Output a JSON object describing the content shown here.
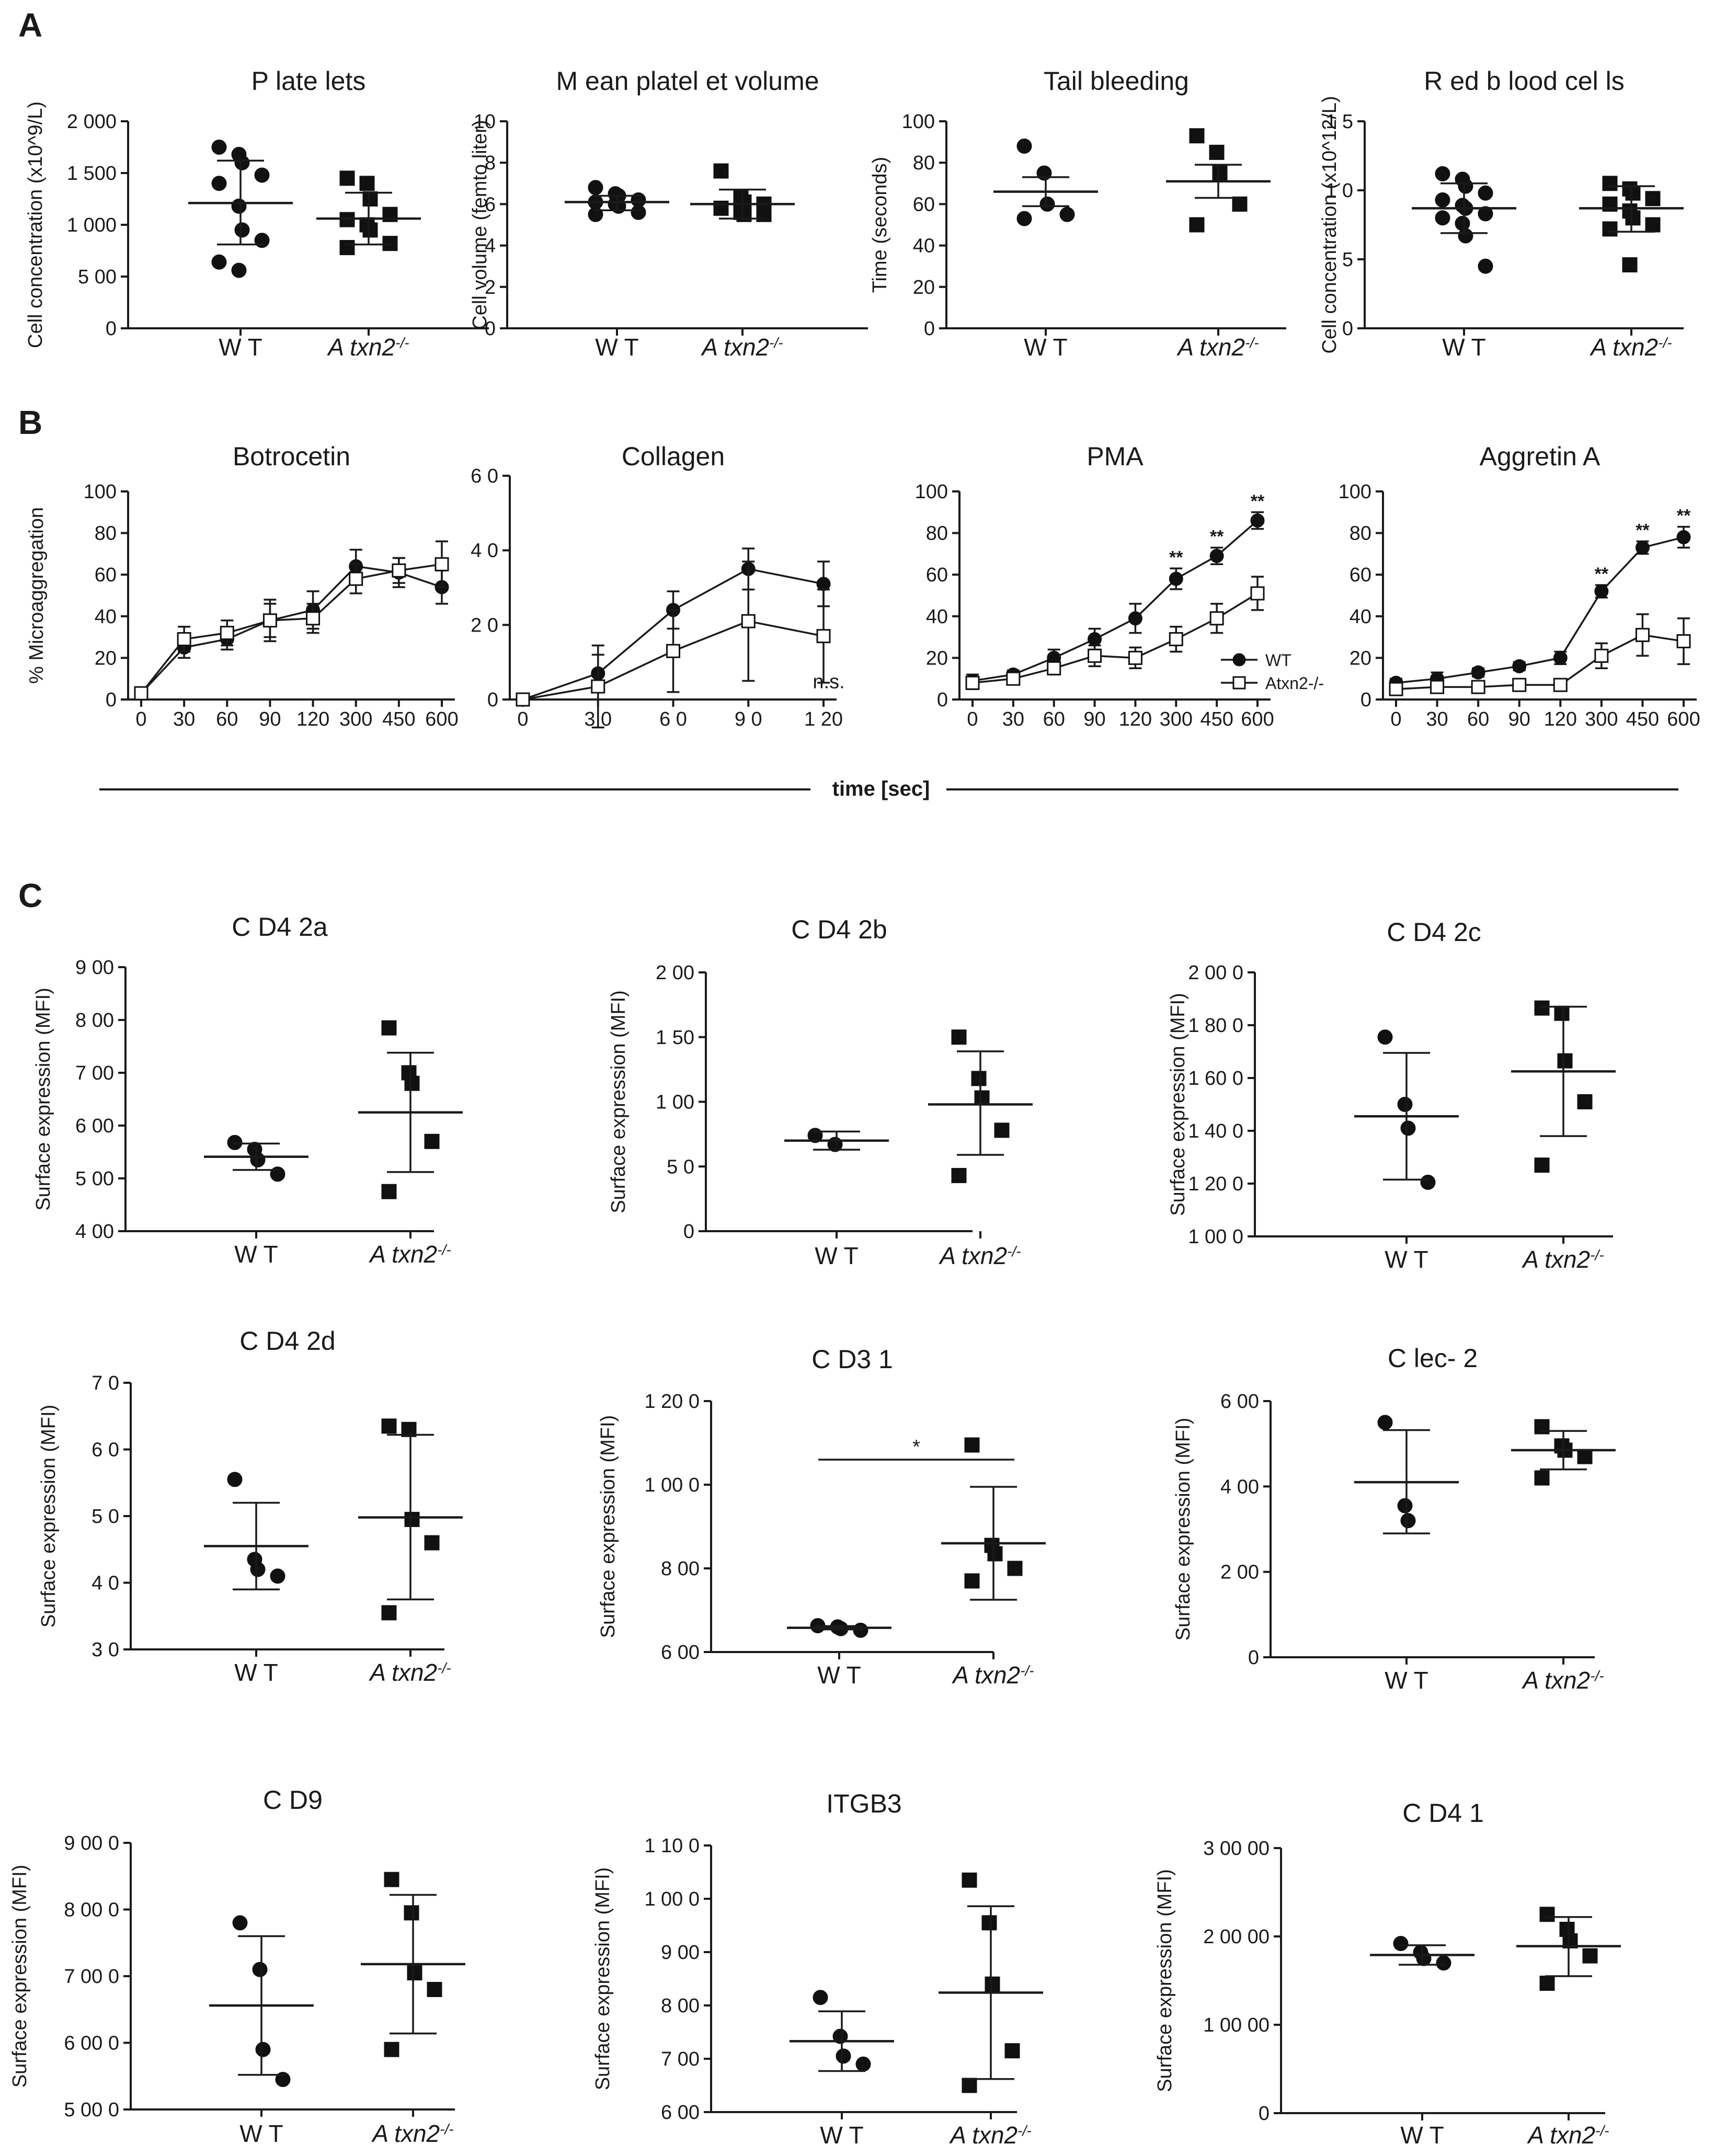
{
  "panel_labels": [
    "A",
    "B",
    "C"
  ],
  "sectionB": {
    "xlabel": "time [sec]"
  },
  "chart_data": [
    {
      "id": "platelets",
      "panel": "A",
      "type": "scatter",
      "title": "P late lets",
      "ylabel": "Cell concentration (x10^9/L)",
      "ylim": [
        0,
        2000
      ],
      "yticks": [
        0,
        500,
        1000,
        1500,
        2000
      ],
      "yticklabels": [
        "0",
        "5 00",
        "1 000",
        "1 500",
        "2 000"
      ],
      "categories": [
        "W T",
        "A txn2-/-"
      ],
      "series": [
        {
          "marker": "circle",
          "points": [
            1750,
            1680,
            1600,
            1480,
            1400,
            1180,
            950,
            850,
            640,
            560
          ],
          "mean": 1210,
          "error": [
            810,
            1620
          ]
        },
        {
          "marker": "square",
          "points": [
            1450,
            1400,
            1250,
            1100,
            1050,
            1000,
            950,
            820,
            780
          ],
          "mean": 1060,
          "error": [
            810,
            1310
          ]
        }
      ]
    },
    {
      "id": "mpv",
      "panel": "A",
      "type": "scatter",
      "title": "M ean platel et volume",
      "ylabel": "Cell volume (femto liter)",
      "ylim": [
        0,
        10
      ],
      "yticks": [
        0,
        2,
        4,
        6,
        8,
        10
      ],
      "yticklabels": [
        "0",
        "2",
        "4",
        "6",
        "8",
        "10"
      ],
      "categories": [
        "W T",
        "A txn2-/-"
      ],
      "series": [
        {
          "marker": "circle",
          "points": [
            6.8,
            6.5,
            6.4,
            6.2,
            6.1,
            6.0,
            5.9,
            5.6,
            5.5
          ],
          "mean": 6.1,
          "error": [
            5.7,
            6.4
          ]
        },
        {
          "marker": "square",
          "points": [
            7.6,
            6.3,
            6.1,
            6.0,
            5.8,
            5.6,
            5.5,
            5.5
          ],
          "mean": 6.0,
          "error": [
            5.3,
            6.7
          ]
        }
      ]
    },
    {
      "id": "tail",
      "panel": "A",
      "type": "scatter",
      "title": "Tail bleeding",
      "ylabel": "Time (seconds)",
      "ylim": [
        0,
        100
      ],
      "yticks": [
        0,
        20,
        40,
        60,
        80,
        100
      ],
      "yticklabels": [
        "0",
        "20",
        "40",
        "60",
        "80",
        "100"
      ],
      "categories": [
        "W T",
        "A txn2-/-"
      ],
      "series": [
        {
          "marker": "circle",
          "points": [
            88,
            75,
            60,
            55,
            53
          ],
          "mean": 66,
          "error": [
            59,
            73
          ]
        },
        {
          "marker": "square",
          "points": [
            93,
            85,
            75,
            60,
            50
          ],
          "mean": 71,
          "error": [
            63,
            79
          ]
        }
      ]
    },
    {
      "id": "rbc",
      "panel": "A",
      "type": "scatter",
      "title": "R ed b lood cel ls",
      "ylabel": "Cell concentration (x10^12/L)",
      "ylim": [
        0,
        15
      ],
      "yticks": [
        0,
        5,
        10,
        15
      ],
      "yticklabels": [
        "0",
        "5",
        "1 0",
        "1 5"
      ],
      "categories": [
        "W T",
        "A txn2-/-"
      ],
      "series": [
        {
          "marker": "circle",
          "points": [
            11.2,
            10.8,
            10.3,
            9.8,
            9.3,
            8.9,
            8.7,
            8.3,
            8.0,
            7.6,
            6.7,
            4.5
          ],
          "mean": 8.7,
          "error": [
            6.9,
            10.5
          ]
        },
        {
          "marker": "square",
          "points": [
            10.5,
            10.1,
            9.8,
            9.4,
            9.0,
            8.5,
            8.0,
            7.5,
            7.2,
            4.6
          ],
          "mean": 8.7,
          "error": [
            7.0,
            10.3
          ]
        }
      ]
    },
    {
      "id": "botrocetin",
      "panel": "B",
      "type": "line",
      "title": "Botrocetin",
      "ylabel": "% Microaggregation",
      "ylim": [
        0,
        100
      ],
      "yticks": [
        0,
        20,
        40,
        60,
        80,
        100
      ],
      "x": [
        "0",
        "30",
        "60",
        "90",
        "120",
        "300",
        "450",
        "600"
      ],
      "series": [
        {
          "marker": "circle",
          "values": [
            3,
            25,
            29,
            38,
            43,
            64,
            61,
            54
          ],
          "err": [
            1.5,
            5,
            5,
            8,
            9,
            8,
            7,
            8
          ]
        },
        {
          "marker": "square",
          "values": [
            3,
            29,
            32,
            38,
            39,
            58,
            62,
            65
          ],
          "err": [
            1.5,
            6,
            6,
            10,
            7,
            7,
            6,
            11
          ]
        }
      ]
    },
    {
      "id": "collagen",
      "panel": "B",
      "type": "line",
      "title": "Collagen",
      "ylim": [
        0,
        60
      ],
      "yticks": [
        0,
        20,
        40,
        60
      ],
      "yticklabels": [
        "0",
        "2 0",
        "4 0",
        "6 0"
      ],
      "x": [
        "0",
        "3 0",
        "6 0",
        "9 0",
        "1 20"
      ],
      "annotation": "n.s.",
      "series": [
        {
          "marker": "circle",
          "values": [
            0,
            7,
            24,
            35,
            31
          ],
          "err": [
            0.5,
            5,
            5,
            5.5,
            6
          ]
        },
        {
          "marker": "square",
          "values": [
            0,
            3.5,
            13,
            21,
            17
          ],
          "err": [
            0.5,
            11,
            11,
            16,
            12.5
          ]
        }
      ]
    },
    {
      "id": "pma",
      "panel": "B",
      "type": "line",
      "title": "PMA",
      "ylim": [
        0,
        100
      ],
      "yticks": [
        0,
        20,
        40,
        60,
        80,
        100
      ],
      "x": [
        "0",
        "30",
        "60",
        "90",
        "120",
        "300",
        "450",
        "600"
      ],
      "sig": [
        "",
        "",
        "",
        "",
        "",
        "**",
        "**",
        "**"
      ],
      "legend": [
        "WT",
        "Atxn2-/-"
      ],
      "series": [
        {
          "name": "WT",
          "marker": "circle",
          "values": [
            9,
            12,
            20,
            29,
            39,
            58,
            69,
            86
          ],
          "err": [
            3,
            2,
            4,
            5,
            7,
            5,
            4,
            4
          ]
        },
        {
          "name": "Atxn2-/-",
          "marker": "square",
          "values": [
            8,
            10,
            15,
            21,
            20,
            29,
            39,
            51
          ],
          "err": [
            3,
            2,
            3,
            5,
            5,
            6,
            7,
            8
          ]
        }
      ]
    },
    {
      "id": "aggretin",
      "panel": "B",
      "type": "line",
      "title": "Aggretin A",
      "ylim": [
        0,
        100
      ],
      "yticks": [
        0,
        20,
        40,
        60,
        80,
        100
      ],
      "x": [
        "0",
        "30",
        "60",
        "90",
        "120",
        "300",
        "450",
        "600"
      ],
      "sig": [
        "",
        "",
        "",
        "",
        "",
        "**",
        "**",
        "**"
      ],
      "series": [
        {
          "marker": "circle",
          "values": [
            8,
            10,
            13,
            16,
            20,
            52,
            73,
            78
          ],
          "err": [
            2,
            3,
            2,
            2,
            3,
            3,
            3,
            5
          ]
        },
        {
          "marker": "square",
          "values": [
            5,
            6,
            6,
            7,
            7,
            21,
            31,
            28
          ],
          "err": [
            2,
            2,
            1,
            1,
            1,
            6,
            10,
            11
          ]
        }
      ]
    },
    {
      "id": "cd42a",
      "panel": "C",
      "type": "scatter",
      "title": "C D4 2a",
      "ylabel": "Surface expression (MFI)",
      "ylim": [
        400,
        900
      ],
      "yticks": [
        400,
        500,
        600,
        700,
        800,
        900
      ],
      "yticklabels": [
        "4 00",
        "5 00",
        "6 00",
        "7 00",
        "8 00",
        "9 00"
      ],
      "categories": [
        "W T",
        "A txn2-/-"
      ],
      "series": [
        {
          "marker": "circle",
          "points": [
            568,
            555,
            535,
            508
          ],
          "mean": 541,
          "error": [
            516,
            566
          ]
        },
        {
          "marker": "square",
          "points": [
            785,
            700,
            680,
            570,
            475
          ],
          "mean": 625,
          "error": [
            512,
            738
          ]
        }
      ]
    },
    {
      "id": "cd42b",
      "panel": "C",
      "type": "scatter",
      "title": "C D4 2b",
      "ylabel": "Surface expression (MFI)",
      "ylim": [
        0,
        200
      ],
      "yticks": [
        0,
        50,
        100,
        150,
        200
      ],
      "yticklabels": [
        "0",
        "5 0",
        "1 00",
        "1 50",
        "2 00"
      ],
      "categories": [
        "W T",
        "A txn2-/-"
      ],
      "series": [
        {
          "marker": "circle",
          "points": [
            74,
            67
          ],
          "mean": 70,
          "error": [
            63,
            77
          ]
        },
        {
          "marker": "square",
          "points": [
            150,
            118,
            103,
            78,
            43
          ],
          "mean": 98,
          "error": [
            59,
            139
          ]
        }
      ]
    },
    {
      "id": "cd42c",
      "panel": "C",
      "type": "scatter",
      "title": "C D4 2c",
      "ylabel": "Surface expression (MFI)",
      "ylim": [
        1000,
        2000
      ],
      "yticks": [
        1000,
        1200,
        1400,
        1600,
        1800,
        2000
      ],
      "yticklabels": [
        "1 00 0",
        "1 20 0",
        "1 40 0",
        "1 60 0",
        "1 80 0",
        "2 00 0"
      ],
      "categories": [
        "W T",
        "A txn2-/-"
      ],
      "series": [
        {
          "marker": "circle",
          "points": [
            1755,
            1500,
            1410,
            1205
          ],
          "mean": 1455,
          "error": [
            1215,
            1695
          ]
        },
        {
          "marker": "square",
          "points": [
            1865,
            1845,
            1665,
            1510,
            1270
          ],
          "mean": 1625,
          "error": [
            1380,
            1870
          ]
        }
      ]
    },
    {
      "id": "cd42d",
      "panel": "C",
      "type": "scatter",
      "title": "C D4 2d",
      "ylabel": "Surface expression (MFI)",
      "ylim": [
        30,
        70
      ],
      "yticks": [
        30,
        40,
        50,
        60,
        70
      ],
      "yticklabels": [
        "3 0",
        "4 0",
        "5 0",
        "6 0",
        "7 0"
      ],
      "categories": [
        "W T",
        "A txn2-/-"
      ],
      "series": [
        {
          "marker": "circle",
          "points": [
            55.5,
            43.5,
            42.0,
            41.0
          ],
          "mean": 45.5,
          "error": [
            39,
            52
          ]
        },
        {
          "marker": "square",
          "points": [
            63.5,
            63.0,
            49.5,
            46.0,
            35.5
          ],
          "mean": 49.8,
          "error": [
            37.5,
            62.2
          ]
        }
      ]
    },
    {
      "id": "cd31",
      "panel": "C",
      "type": "scatter",
      "title": "C D3 1",
      "ylabel": "Surface expression (MFI)",
      "ylim": [
        600,
        1200
      ],
      "yticks": [
        600,
        800,
        1000,
        1200
      ],
      "yticklabels": [
        "6 00",
        "8 00",
        "1 00 0",
        "1 20 0"
      ],
      "categories": [
        "W T",
        "A txn2-/-"
      ],
      "annotation": "*",
      "series": [
        {
          "marker": "circle",
          "points": [
            663,
            660,
            656,
            652
          ],
          "mean": 658,
          "error": [
            654,
            662
          ]
        },
        {
          "marker": "square",
          "points": [
            1095,
            855,
            835,
            800,
            770
          ],
          "mean": 860,
          "error": [
            725,
            995
          ]
        }
      ]
    },
    {
      "id": "clec2",
      "panel": "C",
      "type": "scatter",
      "title": "C lec- 2",
      "ylabel": "Surface expression (MFI)",
      "ylim": [
        0,
        600
      ],
      "yticks": [
        0,
        200,
        400,
        600
      ],
      "yticklabels": [
        "0",
        "2 00",
        "4 00",
        "6 00"
      ],
      "categories": [
        "W T",
        "A txn2-/-"
      ],
      "series": [
        {
          "marker": "circle",
          "points": [
            550,
            355,
            320
          ],
          "mean": 410,
          "error": [
            290,
            532
          ]
        },
        {
          "marker": "square",
          "points": [
            540,
            495,
            485,
            470,
            420
          ],
          "mean": 485,
          "error": [
            440,
            530
          ]
        }
      ]
    },
    {
      "id": "cd9",
      "panel": "C",
      "type": "scatter",
      "title": "C D9",
      "ylabel": "Surface expression (MFI)",
      "ylim": [
        5000,
        9000
      ],
      "yticks": [
        5000,
        6000,
        7000,
        8000,
        9000
      ],
      "yticklabels": [
        "5 00 0",
        "6 00 0",
        "7 00 0",
        "8 00 0",
        "9 00 0"
      ],
      "categories": [
        "W T",
        "A txn2-/-"
      ],
      "series": [
        {
          "marker": "circle",
          "points": [
            7800,
            7100,
            5900,
            5450
          ],
          "mean": 6560,
          "error": [
            5520,
            7600
          ]
        },
        {
          "marker": "square",
          "points": [
            8450,
            7950,
            7050,
            6800,
            5900
          ],
          "mean": 7180,
          "error": [
            6140,
            8220
          ]
        }
      ]
    },
    {
      "id": "itgb3",
      "panel": "C",
      "type": "scatter",
      "title": "ITGB3",
      "ylabel": "Surface expression (MFI)",
      "ylim": [
        600,
        1100
      ],
      "yticks": [
        600,
        700,
        800,
        900,
        1000,
        1100
      ],
      "yticklabels": [
        "6 00",
        "7 00",
        "8 00",
        "9 00",
        "1 00 0",
        "1 10 0"
      ],
      "categories": [
        "W T",
        "A txn2-/-"
      ],
      "series": [
        {
          "marker": "circle",
          "points": [
            815,
            742,
            705,
            690
          ],
          "mean": 733,
          "error": [
            677,
            789
          ]
        },
        {
          "marker": "square",
          "points": [
            1035,
            955,
            840,
            715,
            650
          ],
          "mean": 824,
          "error": [
            662,
            986
          ]
        }
      ]
    },
    {
      "id": "cd41",
      "panel": "C",
      "type": "scatter",
      "title": "C D4 1",
      "ylabel": "Surface expression (MFI)",
      "ylim": [
        0,
        30000
      ],
      "yticks": [
        0,
        10000,
        20000,
        30000
      ],
      "yticklabels": [
        "0",
        "1 00 00",
        "2 00 00",
        "3 00 00"
      ],
      "categories": [
        "W T",
        "A txn2-/-"
      ],
      "series": [
        {
          "marker": "circle",
          "points": [
            19200,
            18200,
            17500,
            17000
          ],
          "mean": 17900,
          "error": [
            16800,
            19000
          ]
        },
        {
          "marker": "square",
          "points": [
            22500,
            20800,
            19500,
            17800,
            14700
          ],
          "mean": 18900,
          "error": [
            15500,
            22200
          ]
        }
      ]
    }
  ]
}
